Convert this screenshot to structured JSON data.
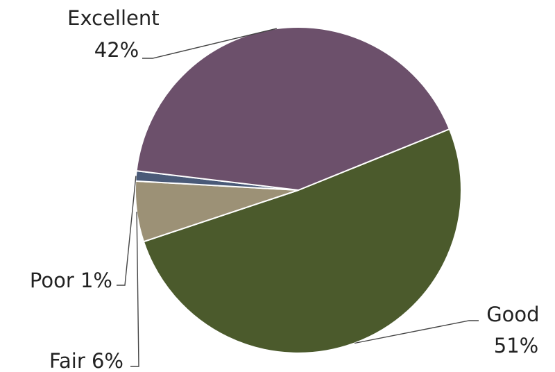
{
  "chart_data": {
    "type": "pie",
    "start_angle_deg": 68,
    "direction": "clockwise",
    "slices": [
      {
        "label": "Good",
        "pct_label": "51%",
        "value": 51,
        "color": "#4b5a2c"
      },
      {
        "label": "Fair",
        "pct_label": "6%",
        "value": 6,
        "color": "#9c9176"
      },
      {
        "label": "Poor",
        "pct_label": "1%",
        "value": 1,
        "color": "#4a5a78"
      },
      {
        "label": "Excellent",
        "pct_label": "42%",
        "value": 42,
        "color": "#6c506b"
      }
    ],
    "legend": "none"
  }
}
